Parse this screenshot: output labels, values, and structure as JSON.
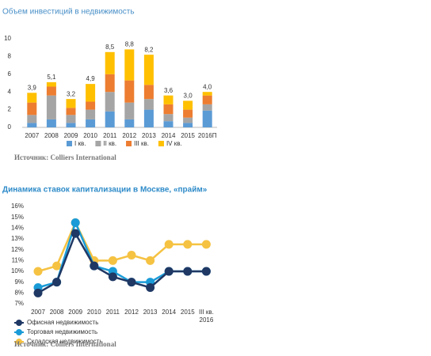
{
  "chart_data": [
    {
      "type": "stacked-bar",
      "title": "Объем инвестиций в недвижимость",
      "categories": [
        "2007",
        "2008",
        "2009",
        "2010",
        "2011",
        "2012",
        "2013",
        "2014",
        "2015",
        "2016П"
      ],
      "series": [
        {
          "name": "I кв.",
          "color": "#5b9bd5",
          "values": [
            0.5,
            0.9,
            0.5,
            0.9,
            1.8,
            0.9,
            2.0,
            0.7,
            0.5,
            1.9
          ]
        },
        {
          "name": "II кв.",
          "color": "#a5a5a5",
          "values": [
            0.9,
            2.7,
            0.9,
            1.1,
            2.2,
            1.9,
            1.2,
            0.8,
            0.6,
            0.7
          ]
        },
        {
          "name": "III кв.",
          "color": "#ed7d31",
          "values": [
            1.4,
            1.0,
            0.8,
            0.9,
            2.0,
            2.5,
            1.6,
            1.1,
            0.9,
            1.0
          ]
        },
        {
          "name": "IV кв.",
          "color": "#ffc000",
          "values": [
            1.1,
            0.5,
            1.0,
            2.0,
            2.5,
            3.5,
            3.4,
            1.0,
            1.0,
            0.4
          ]
        }
      ],
      "totals": [
        3.9,
        5.1,
        3.2,
        4.9,
        8.5,
        8.8,
        8.2,
        3.6,
        3.0,
        4.0
      ],
      "total_labels": [
        "3,9",
        "5,1",
        "3,2",
        "4,9",
        "8,5",
        "8,8",
        "8,2",
        "3,6",
        "3,0",
        "4,0"
      ],
      "ylim": [
        0,
        10
      ],
      "yticks": [
        0,
        2,
        4,
        6,
        8,
        10
      ],
      "source": "Источник: Colliers International"
    },
    {
      "type": "line",
      "title": "Динамика ставок капитализации в Москве, «прайм»",
      "categories": [
        "2007",
        "2008",
        "2009",
        "2010",
        "2011",
        "2012",
        "2013",
        "2014",
        "2015",
        "III кв. 2016"
      ],
      "series": [
        {
          "name": "Офисная недвижимость",
          "color": "#1f3864",
          "values": [
            8,
            9,
            13.5,
            10.5,
            9.5,
            9,
            8.5,
            10,
            10,
            10
          ]
        },
        {
          "name": "Торговая недвижимость",
          "color": "#1a9bd7",
          "values": [
            8.5,
            9,
            14.5,
            10.5,
            10,
            9,
            9,
            10,
            10,
            10
          ]
        },
        {
          "name": "Складская недвижимость",
          "color": "#f5c242",
          "values": [
            10,
            10.5,
            14.5,
            11,
            11,
            11.5,
            11,
            12.5,
            12.5,
            12.5
          ]
        }
      ],
      "ylim": [
        7,
        16
      ],
      "yticks": [
        {
          "value": 7,
          "label": "7%"
        },
        {
          "value": 8,
          "label": "8%"
        },
        {
          "value": 9,
          "label": "9%"
        },
        {
          "value": 10,
          "label": "10%"
        },
        {
          "value": 11,
          "label": "11%"
        },
        {
          "value": 12,
          "label": "12%"
        },
        {
          "value": 13,
          "label": "13%"
        },
        {
          "value": 14,
          "label": "14%"
        },
        {
          "value": 15,
          "label": "15%"
        },
        {
          "value": 16,
          "label": "16%"
        }
      ],
      "source": "Источник: Colliers International"
    }
  ]
}
